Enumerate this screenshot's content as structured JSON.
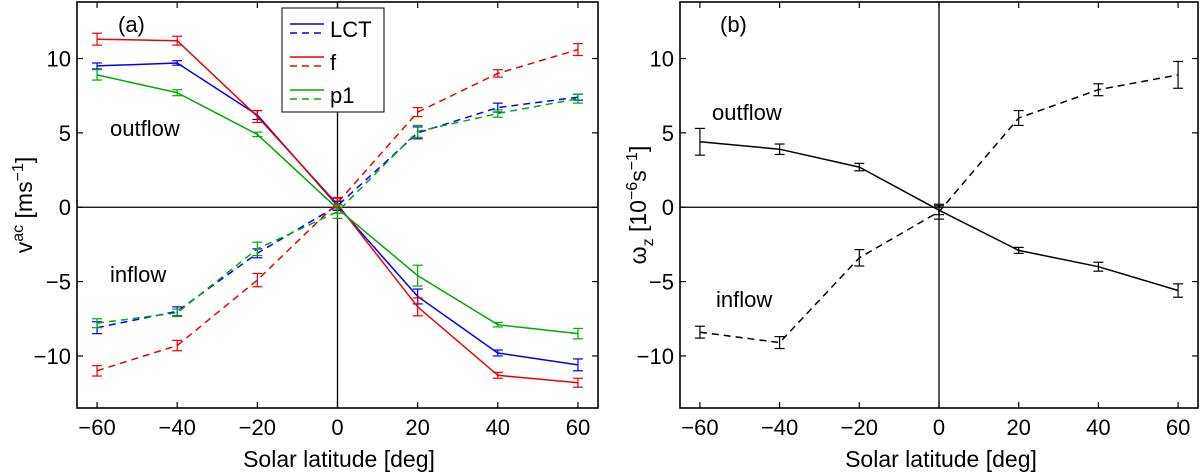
{
  "chart_data": [
    {
      "type": "line",
      "panel_label": "(a)",
      "xlabel": "Solar latitude [deg]",
      "ylabel": "v^{ac} [ms^{-1}]",
      "ylabel_main": "v",
      "ylabel_sup": "ac",
      "ylabel_unit_open": " [ms",
      "ylabel_unit_sup": "−1",
      "ylabel_unit_close": "]",
      "xlim": [
        -65,
        65
      ],
      "ylim": [
        -13.5,
        13.8
      ],
      "xticks": [
        -60,
        -40,
        -20,
        0,
        20,
        40,
        60
      ],
      "xtick_labels": [
        "−60",
        "−40",
        "−20",
        "0",
        "20",
        "40",
        "60"
      ],
      "yticks": [
        -10,
        -5,
        0,
        5,
        10
      ],
      "ytick_labels": [
        "−10",
        "−5",
        "0",
        "5",
        "10"
      ],
      "annotations": [
        "outflow",
        "inflow"
      ],
      "legend": [
        {
          "label": "LCT",
          "color": "#0000ee"
        },
        {
          "label": "f",
          "color": "#ee0000"
        },
        {
          "label": "p1",
          "color": "#00aa00"
        }
      ],
      "x": [
        -60,
        -40,
        -20,
        0,
        20,
        40,
        60
      ],
      "series": [
        {
          "name": "LCT outflow",
          "color": "#0000ee",
          "style": "solid",
          "values": [
            9.5,
            9.7,
            6.2,
            0.1,
            -6.0,
            -9.8,
            -10.6
          ],
          "errors": [
            0.2,
            0.15,
            0.3,
            0.3,
            0.5,
            0.2,
            0.4
          ]
        },
        {
          "name": "f outflow",
          "color": "#ee0000",
          "style": "solid",
          "values": [
            11.3,
            11.2,
            6.1,
            0.2,
            -6.7,
            -11.3,
            -11.8
          ],
          "errors": [
            0.4,
            0.3,
            0.4,
            0.4,
            0.6,
            0.2,
            0.3
          ]
        },
        {
          "name": "p1 outflow",
          "color": "#00aa00",
          "style": "solid",
          "values": [
            8.9,
            7.7,
            4.9,
            -0.1,
            -4.6,
            -7.9,
            -8.5
          ],
          "errors": [
            0.35,
            0.2,
            0.15,
            0.3,
            0.7,
            0.15,
            0.35
          ]
        },
        {
          "name": "LCT inflow",
          "color": "#0000ee",
          "style": "dashed",
          "values": [
            -8.1,
            -7.0,
            -3.1,
            0.1,
            5.0,
            6.7,
            7.4
          ],
          "errors": [
            0.4,
            0.3,
            0.3,
            0.3,
            0.4,
            0.3,
            0.2
          ]
        },
        {
          "name": "f inflow",
          "color": "#ee0000",
          "style": "dashed",
          "values": [
            -11.0,
            -9.3,
            -4.9,
            0.3,
            6.4,
            9.0,
            10.6
          ],
          "errors": [
            0.35,
            0.35,
            0.45,
            0.35,
            0.3,
            0.25,
            0.4
          ]
        },
        {
          "name": "p1 inflow",
          "color": "#00aa00",
          "style": "dashed",
          "values": [
            -7.8,
            -7.1,
            -2.8,
            -0.3,
            5.1,
            6.3,
            7.3
          ],
          "errors": [
            0.3,
            0.25,
            0.45,
            0.45,
            0.4,
            0.25,
            0.3
          ]
        }
      ]
    },
    {
      "type": "line",
      "panel_label": "(b)",
      "xlabel": "Solar latitude [deg]",
      "ylabel": "ω_z [10^{-6}s^{-1}]",
      "ylabel_main": "ω",
      "ylabel_sub": "z",
      "ylabel_unit_open": " [10",
      "ylabel_unit_sup1": "−6",
      "ylabel_unit_mid": "s",
      "ylabel_unit_sup2": "−1",
      "ylabel_unit_close": "]",
      "xlim": [
        -65,
        65
      ],
      "ylim": [
        -13.5,
        13.8
      ],
      "xticks": [
        -60,
        -40,
        -20,
        0,
        20,
        40,
        60
      ],
      "xtick_labels": [
        "−60",
        "−40",
        "−20",
        "0",
        "20",
        "40",
        "60"
      ],
      "yticks": [
        -10,
        -5,
        0,
        5,
        10
      ],
      "ytick_labels": [
        "−10",
        "−5",
        "0",
        "5",
        "10"
      ],
      "annotations": [
        "outflow",
        "inflow"
      ],
      "x": [
        -60,
        -40,
        -20,
        0,
        20,
        40,
        60
      ],
      "series": [
        {
          "name": "outflow",
          "color": "#000000",
          "style": "solid",
          "values": [
            4.4,
            3.9,
            2.7,
            -0.2,
            -2.9,
            -4.0,
            -5.6
          ],
          "errors": [
            0.9,
            0.35,
            0.25,
            0.3,
            0.2,
            0.3,
            0.45
          ]
        },
        {
          "name": "inflow",
          "color": "#000000",
          "style": "dashed",
          "values": [
            -8.4,
            -9.1,
            -3.4,
            -0.3,
            6.0,
            7.9,
            8.9
          ],
          "errors": [
            0.4,
            0.4,
            0.55,
            0.5,
            0.5,
            0.4,
            0.9
          ]
        }
      ]
    }
  ]
}
